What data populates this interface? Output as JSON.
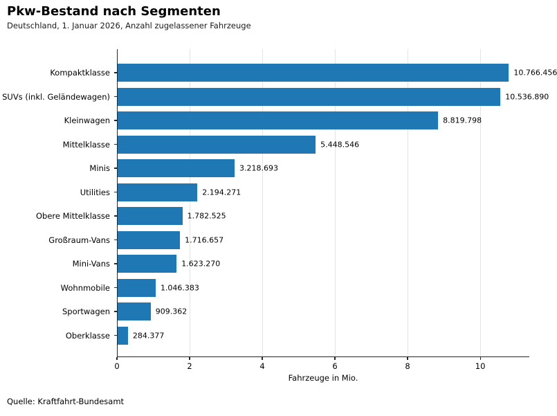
{
  "header": {
    "title": "Pkw-Bestand nach Segmenten",
    "subtitle": "Deutschland, 1. Januar 2026, Anzahl zugelassener Fahrzeuge"
  },
  "chart_data": {
    "type": "bar",
    "orientation": "horizontal",
    "title": "Pkw-Bestand nach Segmenten",
    "subtitle": "Deutschland, 1. Januar 2026, Anzahl zugelassener Fahrzeuge",
    "categories": [
      "Kompaktklasse",
      "SUVs (inkl. Geländewagen)",
      "Kleinwagen",
      "Mittelklasse",
      "Minis",
      "Utilities",
      "Obere Mittelklasse",
      "Großraum-Vans",
      "Mini-Vans",
      "Wohnmobile",
      "Sportwagen",
      "Oberklasse"
    ],
    "values": [
      10766456,
      10536890,
      8819798,
      5448546,
      3218693,
      2194271,
      1782525,
      1716657,
      1623270,
      1046383,
      909362,
      284377
    ],
    "value_labels": [
      "10.766.456",
      "10.536.890",
      "8.819.798",
      "5.448.546",
      "3.218.693",
      "2.194.271",
      "1.782.525",
      "1.716.657",
      "1.623.270",
      "1.046.383",
      "909.362",
      "284.377"
    ],
    "xlabel": "Fahrzeuge in Mio.",
    "x_ticks": [
      0,
      2,
      4,
      6,
      8,
      10
    ],
    "xlim_mio": [
      0,
      11.35
    ],
    "grid": "vertical-light",
    "bar_color": "#1f77b4",
    "axis_color": "#262626",
    "gridline_color": "#e4e4e4",
    "legend": "none"
  },
  "footer": {
    "source": "Quelle: Kraftfahrt-Bundesamt"
  }
}
